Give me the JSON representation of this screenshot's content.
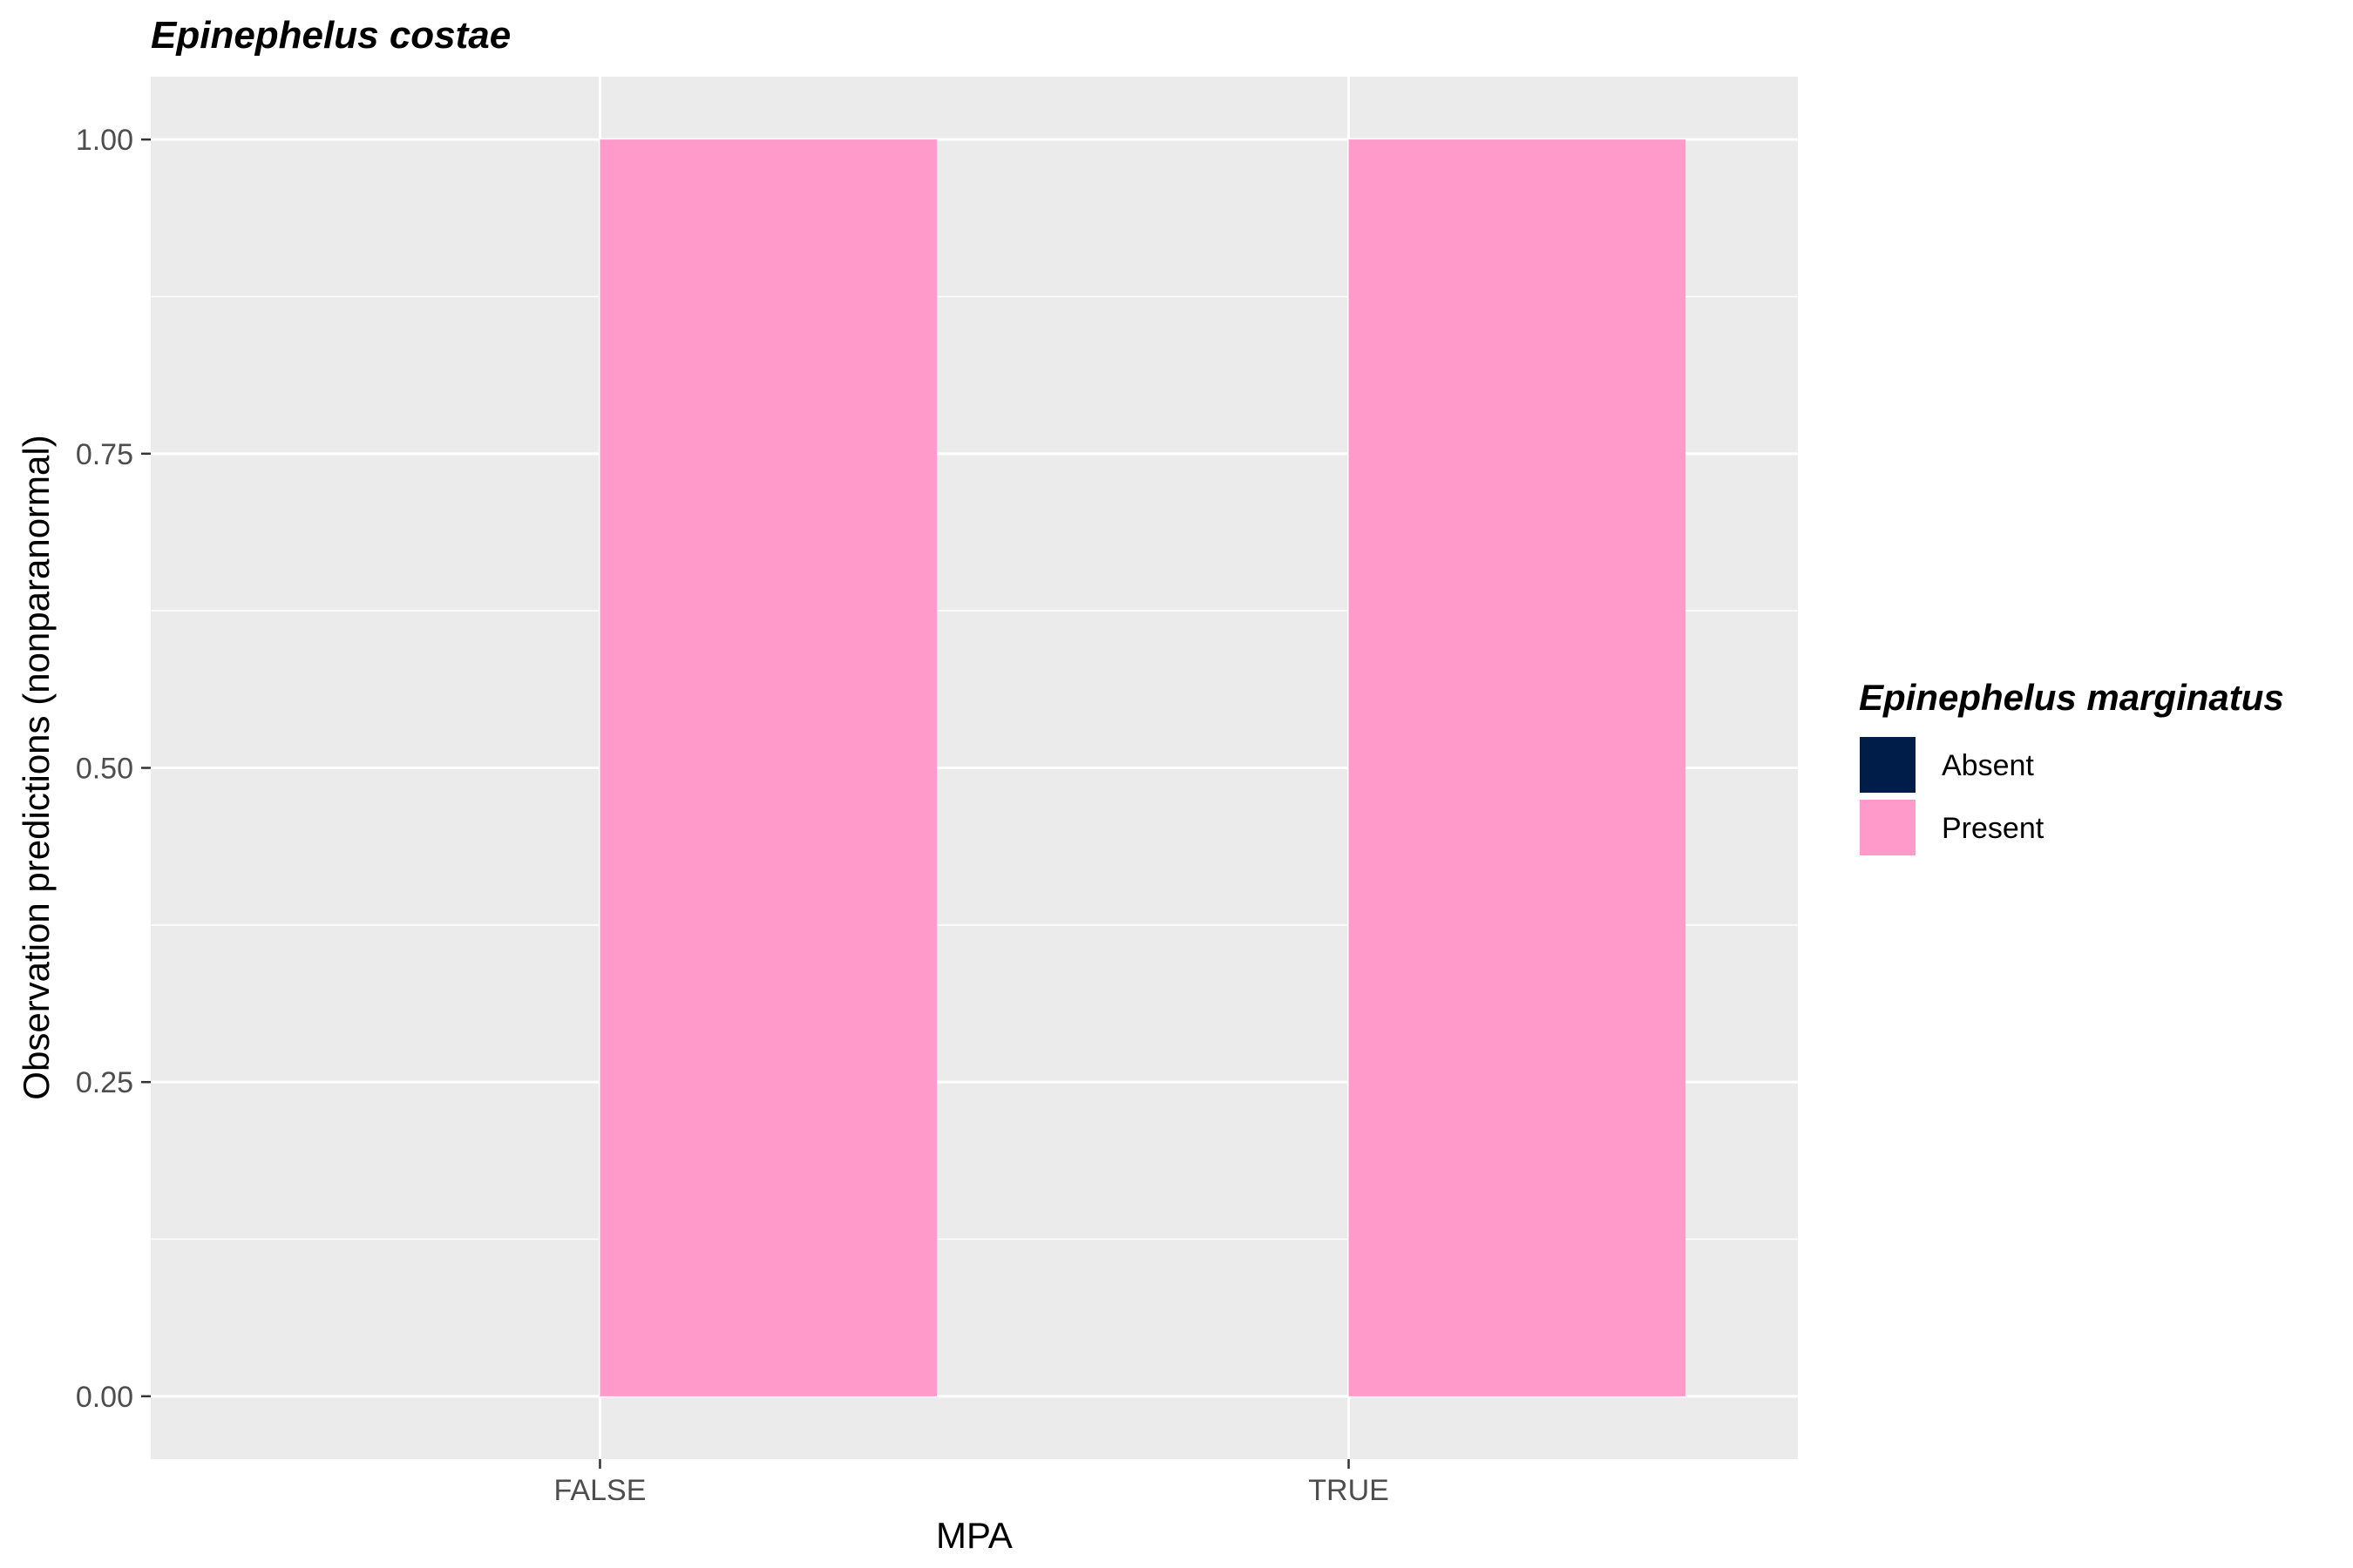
{
  "chart_data": {
    "type": "bar",
    "title": "Epinephelus costae",
    "xlabel": "MPA",
    "ylabel": "Observation predictions (nonparanormal)",
    "categories": [
      "FALSE",
      "TRUE"
    ],
    "series": [
      {
        "name": "Absent",
        "values": [
          0,
          0
        ],
        "color": "#001c48"
      },
      {
        "name": "Present",
        "values": [
          1,
          1
        ],
        "color": "#ff9acb"
      }
    ],
    "ylim": [
      -0.05,
      1.05
    ],
    "yticks": [
      0.0,
      0.25,
      0.5,
      0.75,
      1.0
    ],
    "ytick_labels": [
      "0.00",
      "0.25",
      "0.50",
      "0.75",
      "1.00"
    ],
    "grid": true,
    "legend": {
      "title": "Epinephelus marginatus",
      "placement": "right",
      "items": [
        "Absent",
        "Present"
      ]
    },
    "colors": {
      "panel_background": "#ebebeb",
      "grid": "#ffffff"
    }
  }
}
